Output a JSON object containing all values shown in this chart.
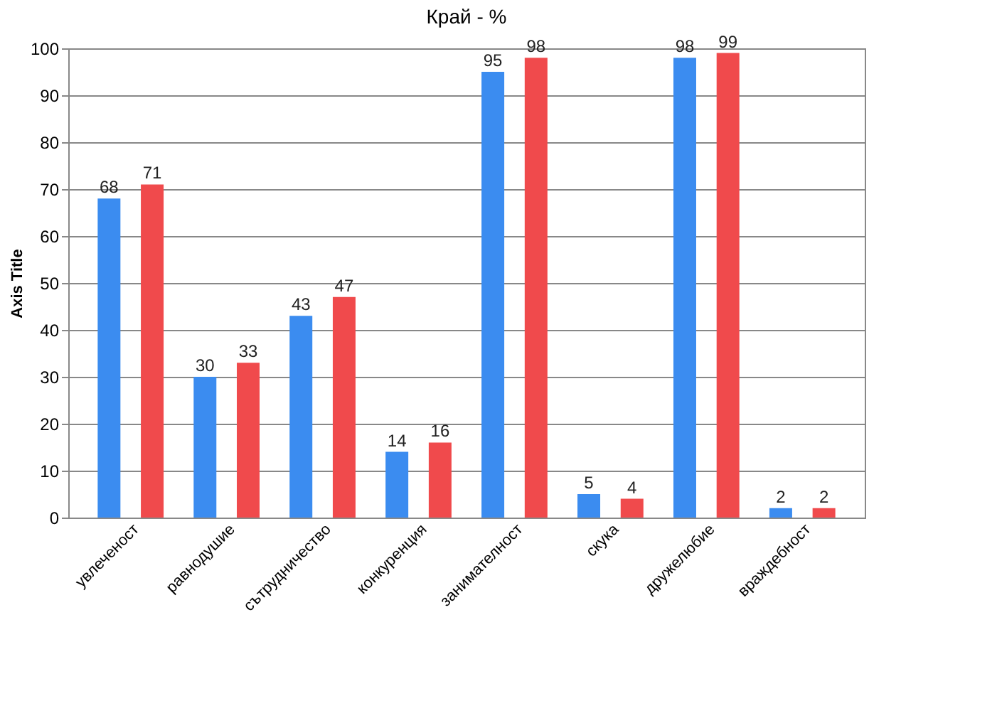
{
  "chart_data": {
    "type": "bar",
    "title": "Край - %",
    "ylabel": "Axis Title",
    "categories": [
      "увлеченост",
      "равнодушие",
      "сътрудничество",
      "конкуренция",
      "занимателност",
      "скука",
      "дружелюбие",
      "враждебност"
    ],
    "series": [
      {
        "color": "#3b8cf0",
        "values": [
          68,
          30,
          43,
          14,
          95,
          5,
          98,
          2
        ]
      },
      {
        "color": "#f04a4c",
        "values": [
          71,
          33,
          47,
          16,
          98,
          4,
          99,
          2
        ]
      }
    ],
    "ylim": [
      0,
      100
    ],
    "yticks": [
      0,
      10,
      20,
      30,
      40,
      50,
      60,
      70,
      80,
      90,
      100
    ],
    "grid": "y",
    "data_labels": true,
    "legend": false
  }
}
